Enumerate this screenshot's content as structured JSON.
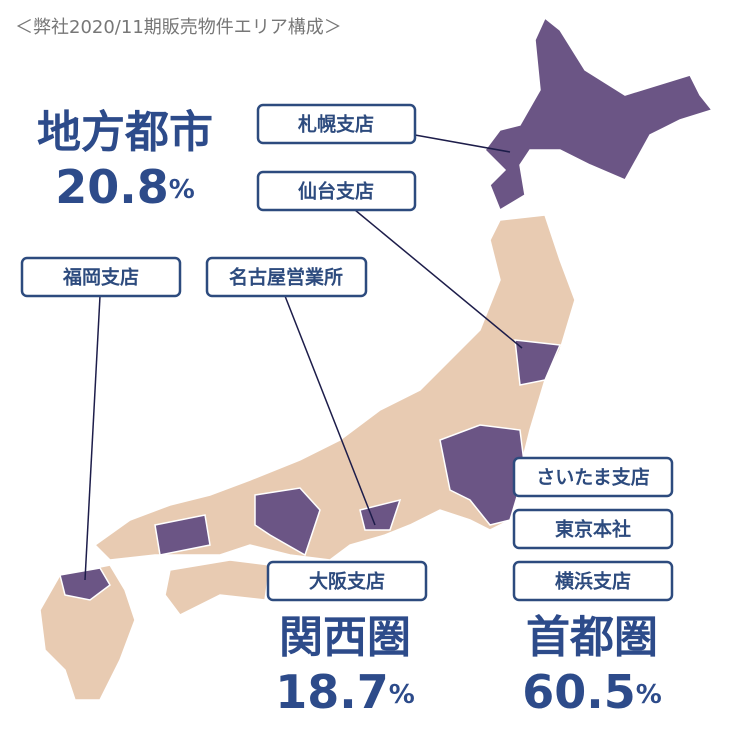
{
  "header": {
    "title": "＜弊社2020/11期販売物件エリア構成＞"
  },
  "offices": {
    "sapporo": "札幌支店",
    "sendai": "仙台支店",
    "fukuoka": "福岡支店",
    "nagoya": "名古屋営業所",
    "saitama": "さいたま支店",
    "tokyo": "東京本社",
    "yokohama": "横浜支店",
    "osaka": "大阪支店"
  },
  "regions": [
    {
      "name": "地方都市",
      "percent": "20.8",
      "unit": "%"
    },
    {
      "name": "関西圏",
      "percent": "18.7",
      "unit": "%"
    },
    {
      "name": "首都圏",
      "percent": "60.5",
      "unit": "%"
    }
  ]
}
